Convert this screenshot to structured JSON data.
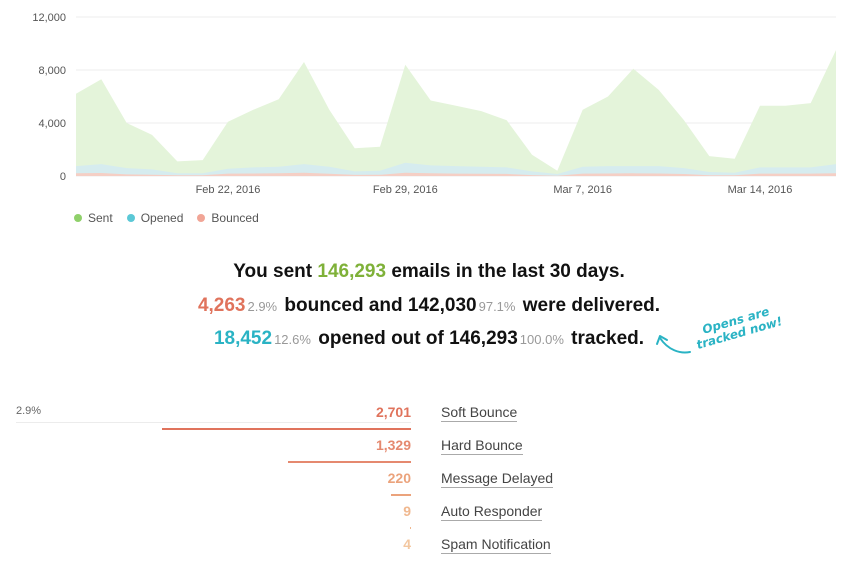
{
  "chart_data": {
    "type": "area",
    "title": "",
    "xlabel": "",
    "ylabel": "",
    "ylim": [
      0,
      12000
    ],
    "yticks": [
      "0",
      "4,000",
      "8,000",
      "12,000"
    ],
    "yticks_values": [
      0,
      4000,
      8000,
      12000
    ],
    "xtick_labels": [
      "Feb 22, 2016",
      "Feb 29, 2016",
      "Mar 7, 2016",
      "Mar 14, 2016"
    ],
    "xtick_indices": [
      6,
      13,
      20,
      27
    ],
    "x": [
      "Feb 16",
      "Feb 17",
      "Feb 18",
      "Feb 19",
      "Feb 20",
      "Feb 21",
      "Feb 22",
      "Feb 23",
      "Feb 24",
      "Feb 25",
      "Feb 26",
      "Feb 27",
      "Feb 28",
      "Feb 29",
      "Mar 1",
      "Mar 2",
      "Mar 3",
      "Mar 4",
      "Mar 5",
      "Mar 6",
      "Mar 7",
      "Mar 8",
      "Mar 9",
      "Mar 10",
      "Mar 11",
      "Mar 12",
      "Mar 13",
      "Mar 14",
      "Mar 15",
      "Mar 16"
    ],
    "series": [
      {
        "name": "Sent",
        "color": "#e4f4da",
        "marker": "#8fd06a",
        "values": [
          6200,
          7300,
          4000,
          3100,
          1100,
          1200,
          4100,
          5000,
          5800,
          8600,
          5000,
          2100,
          2200,
          8400,
          5700,
          5300,
          4900,
          4200,
          1600,
          400,
          5000,
          6000,
          8100,
          6500,
          4200,
          1500,
          1300,
          5300,
          5300,
          5500
        ]
      },
      {
        "name": "Opened",
        "color": "#d6ecef",
        "marker": "#5bc8d6",
        "values": [
          750,
          900,
          600,
          500,
          200,
          200,
          550,
          650,
          700,
          900,
          700,
          350,
          400,
          1000,
          800,
          750,
          700,
          650,
          350,
          150,
          700,
          750,
          750,
          750,
          600,
          300,
          250,
          650,
          650,
          650
        ]
      },
      {
        "name": "Bounced",
        "color": "#f5cfc5",
        "marker": "#f1a596",
        "values": [
          200,
          230,
          120,
          100,
          50,
          50,
          180,
          190,
          200,
          250,
          170,
          80,
          90,
          250,
          200,
          180,
          170,
          160,
          70,
          20,
          180,
          190,
          200,
          190,
          150,
          60,
          50,
          180,
          180,
          180
        ]
      }
    ],
    "last_values": {
      "Sent": 9500,
      "Opened": 900,
      "Bounced": 200
    }
  },
  "legend": {
    "sent": "Sent",
    "opened": "Opened",
    "bounced": "Bounced"
  },
  "summary": {
    "line1_prefix": "You sent",
    "line1_sent": "146,293",
    "line1_suffix": "emails in the last 30 days.",
    "line2_bounced": "4,263",
    "line2_bounced_pct": "2.9%",
    "line2_mid": "bounced and",
    "line2_delivered": "142,030",
    "line2_delivered_pct": "97.1%",
    "line2_suffix": "were delivered.",
    "line3_opened": "18,452",
    "line3_opened_pct": "12.6%",
    "line3_mid": "opened out of",
    "line3_tracked": "146,293",
    "line3_tracked_pct": "100.0%",
    "line3_suffix": "tracked."
  },
  "note": {
    "line1": "Opens are",
    "line2": "tracked now!"
  },
  "bounces": {
    "total_pct": "2.9%",
    "max": 2701,
    "rows": [
      {
        "value": 2701,
        "value_text": "2,701",
        "label": "Soft Bounce",
        "color": "#e0735c"
      },
      {
        "value": 1329,
        "value_text": "1,329",
        "label": "Hard Bounce",
        "color": "#e5896f"
      },
      {
        "value": 220,
        "value_text": "220",
        "label": "Message Delayed",
        "color": "#eba37c"
      },
      {
        "value": 9,
        "value_text": "9",
        "label": "Auto Responder",
        "color": "#f0b88f"
      },
      {
        "value": 4,
        "value_text": "4",
        "label": "Spam Notification",
        "color": "#f3c7a0"
      }
    ]
  }
}
